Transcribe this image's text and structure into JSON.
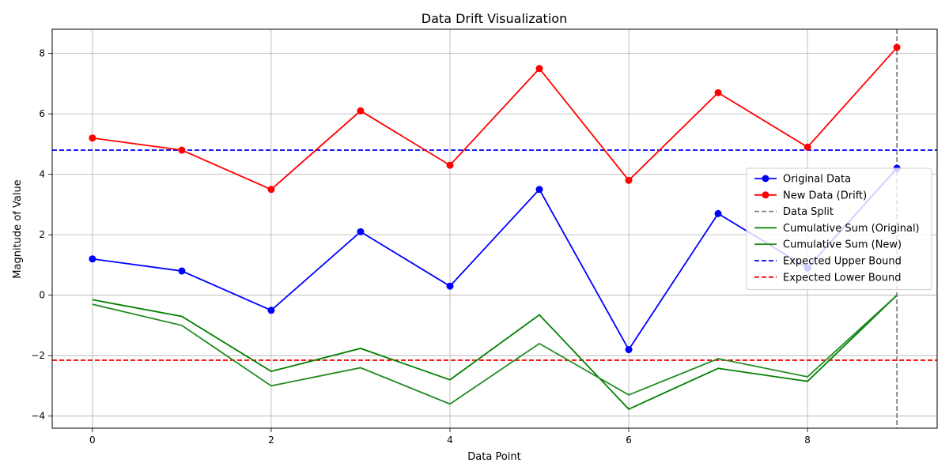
{
  "chart_data": {
    "type": "line",
    "title": "Data Drift Visualization",
    "xlabel": "Data Point",
    "ylabel": "Magnitude of Value",
    "xlim": [
      -0.45,
      9.45
    ],
    "ylim": [
      -4.4,
      8.8
    ],
    "xticks": [
      0,
      2,
      4,
      6,
      8
    ],
    "yticks": [
      -4,
      -2,
      0,
      2,
      4,
      6,
      8
    ],
    "grid": true,
    "legend_position": "center-right",
    "x": [
      0,
      1,
      2,
      3,
      4,
      5,
      6,
      7,
      8,
      9
    ],
    "series": [
      {
        "name": "Original Data",
        "color": "#0000ff",
        "style": "line-markers",
        "values": [
          1.2,
          0.8,
          -0.5,
          2.1,
          0.3,
          3.5,
          -1.8,
          2.7,
          0.9,
          4.2
        ]
      },
      {
        "name": "New Data (Drift)",
        "color": "#ff0000",
        "style": "line-markers",
        "values": [
          5.2,
          4.8,
          3.5,
          6.1,
          4.3,
          7.5,
          3.8,
          6.7,
          4.9,
          8.2
        ]
      },
      {
        "name": "Cumulative Sum (Original)",
        "color": "#008000",
        "style": "line",
        "values": [
          -0.15,
          -0.7,
          -2.52,
          -1.76,
          -2.8,
          -0.65,
          -3.77,
          -2.42,
          -2.85,
          0.0
        ]
      },
      {
        "name": "Cumulative Sum (New)",
        "color": "#228b22",
        "style": "line",
        "values": [
          -0.3,
          -1.0,
          -3.0,
          -2.4,
          -3.6,
          -1.6,
          -3.3,
          -2.1,
          -2.7,
          0.0
        ]
      }
    ],
    "reference_lines": [
      {
        "name": "Data Split",
        "orientation": "vertical",
        "value": 9,
        "color": "#808080"
      },
      {
        "name": "Expected Upper Bound",
        "orientation": "horizontal",
        "value": 4.8,
        "color": "#0000ff"
      },
      {
        "name": "Expected Lower Bound",
        "orientation": "horizontal",
        "value": -2.15,
        "color": "#ff0000"
      }
    ],
    "legend": [
      {
        "label": "Original Data",
        "color": "#0000ff",
        "style": "line-marker"
      },
      {
        "label": "New Data (Drift)",
        "color": "#ff0000",
        "style": "line-marker"
      },
      {
        "label": "Data Split",
        "color": "#808080",
        "style": "dashed"
      },
      {
        "label": "Cumulative Sum (Original)",
        "color": "#008000",
        "style": "line"
      },
      {
        "label": "Cumulative Sum (New)",
        "color": "#228b22",
        "style": "line"
      },
      {
        "label": "Expected Upper Bound",
        "color": "#0000ff",
        "style": "dashed"
      },
      {
        "label": "Expected Lower Bound",
        "color": "#ff0000",
        "style": "dashed"
      }
    ]
  }
}
